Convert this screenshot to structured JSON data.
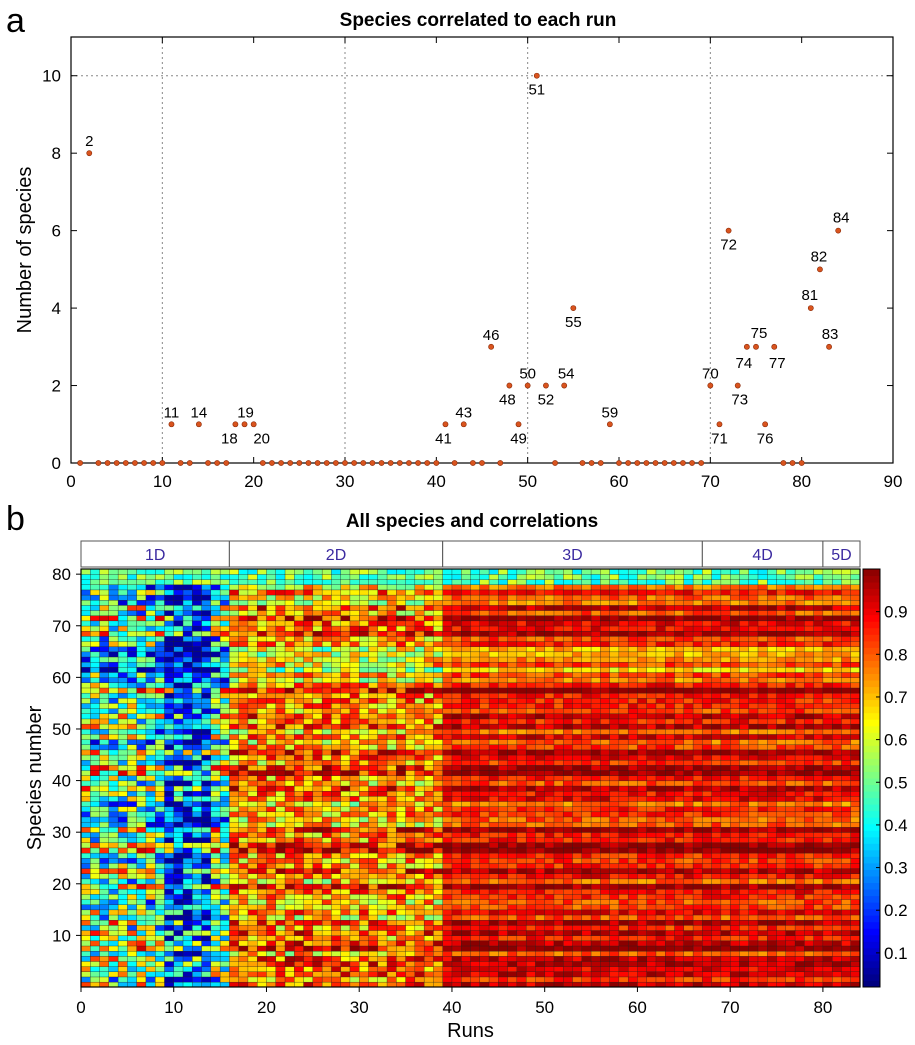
{
  "chart_data": [
    {
      "type": "scatter",
      "panel": "a",
      "title": "Species correlated to each run",
      "xlabel": "",
      "ylabel": "Number of species",
      "xlim": [
        0,
        90
      ],
      "ylim": [
        0,
        11
      ],
      "xticks": [
        0,
        10,
        20,
        30,
        40,
        50,
        60,
        70,
        80,
        90
      ],
      "yticks": [
        0,
        2,
        4,
        6,
        8,
        10
      ],
      "grid": "dotted at x=10,30,50,70 and y=10",
      "marker_color": "#d9541e",
      "points": [
        {
          "x": 1,
          "y": 0
        },
        {
          "x": 2,
          "y": 8,
          "label": "2"
        },
        {
          "x": 3,
          "y": 0
        },
        {
          "x": 4,
          "y": 0
        },
        {
          "x": 5,
          "y": 0
        },
        {
          "x": 6,
          "y": 0
        },
        {
          "x": 7,
          "y": 0
        },
        {
          "x": 8,
          "y": 0
        },
        {
          "x": 9,
          "y": 0
        },
        {
          "x": 10,
          "y": 0
        },
        {
          "x": 11,
          "y": 1,
          "label": "11"
        },
        {
          "x": 12,
          "y": 0
        },
        {
          "x": 13,
          "y": 0
        },
        {
          "x": 14,
          "y": 1,
          "label": "14"
        },
        {
          "x": 15,
          "y": 0
        },
        {
          "x": 16,
          "y": 0
        },
        {
          "x": 17,
          "y": 0
        },
        {
          "x": 18,
          "y": 1,
          "label": "18"
        },
        {
          "x": 19,
          "y": 1,
          "label": "19"
        },
        {
          "x": 20,
          "y": 1,
          "label": "20"
        },
        {
          "x": 21,
          "y": 0
        },
        {
          "x": 22,
          "y": 0
        },
        {
          "x": 23,
          "y": 0
        },
        {
          "x": 24,
          "y": 0
        },
        {
          "x": 25,
          "y": 0
        },
        {
          "x": 26,
          "y": 0
        },
        {
          "x": 27,
          "y": 0
        },
        {
          "x": 28,
          "y": 0
        },
        {
          "x": 29,
          "y": 0
        },
        {
          "x": 30,
          "y": 0
        },
        {
          "x": 31,
          "y": 0
        },
        {
          "x": 32,
          "y": 0
        },
        {
          "x": 33,
          "y": 0
        },
        {
          "x": 34,
          "y": 0
        },
        {
          "x": 35,
          "y": 0
        },
        {
          "x": 36,
          "y": 0
        },
        {
          "x": 37,
          "y": 0
        },
        {
          "x": 38,
          "y": 0
        },
        {
          "x": 39,
          "y": 0
        },
        {
          "x": 40,
          "y": 0
        },
        {
          "x": 41,
          "y": 1,
          "label": "41"
        },
        {
          "x": 42,
          "y": 0
        },
        {
          "x": 43,
          "y": 1,
          "label": "43"
        },
        {
          "x": 44,
          "y": 0
        },
        {
          "x": 45,
          "y": 0
        },
        {
          "x": 46,
          "y": 3,
          "label": "46"
        },
        {
          "x": 47,
          "y": 0
        },
        {
          "x": 48,
          "y": 2,
          "label": "48"
        },
        {
          "x": 49,
          "y": 1,
          "label": "49"
        },
        {
          "x": 50,
          "y": 2,
          "label": "50"
        },
        {
          "x": 51,
          "y": 10,
          "label": "51"
        },
        {
          "x": 52,
          "y": 2,
          "label": "52"
        },
        {
          "x": 53,
          "y": 0
        },
        {
          "x": 54,
          "y": 2,
          "label": "54"
        },
        {
          "x": 55,
          "y": 4,
          "label": "55"
        },
        {
          "x": 56,
          "y": 0
        },
        {
          "x": 57,
          "y": 0
        },
        {
          "x": 58,
          "y": 0
        },
        {
          "x": 59,
          "y": 1,
          "label": "59"
        },
        {
          "x": 60,
          "y": 0
        },
        {
          "x": 61,
          "y": 0
        },
        {
          "x": 62,
          "y": 0
        },
        {
          "x": 63,
          "y": 0
        },
        {
          "x": 64,
          "y": 0
        },
        {
          "x": 65,
          "y": 0
        },
        {
          "x": 66,
          "y": 0
        },
        {
          "x": 67,
          "y": 0
        },
        {
          "x": 68,
          "y": 0
        },
        {
          "x": 69,
          "y": 0
        },
        {
          "x": 70,
          "y": 2,
          "label": "70"
        },
        {
          "x": 71,
          "y": 1,
          "label": "71"
        },
        {
          "x": 72,
          "y": 6,
          "label": "72"
        },
        {
          "x": 73,
          "y": 2,
          "label": "73"
        },
        {
          "x": 74,
          "y": 3,
          "label": "74"
        },
        {
          "x": 75,
          "y": 3,
          "label": "75"
        },
        {
          "x": 76,
          "y": 1,
          "label": "76"
        },
        {
          "x": 77,
          "y": 3,
          "label": "77"
        },
        {
          "x": 78,
          "y": 0
        },
        {
          "x": 79,
          "y": 0
        },
        {
          "x": 80,
          "y": 0
        },
        {
          "x": 81,
          "y": 4,
          "label": "81"
        },
        {
          "x": 82,
          "y": 5,
          "label": "82"
        },
        {
          "x": 83,
          "y": 3,
          "label": "83"
        },
        {
          "x": 84,
          "y": 6,
          "label": "84"
        }
      ]
    },
    {
      "type": "heatmap",
      "panel": "b",
      "title": "All species and correlations",
      "xlabel": "Runs",
      "ylabel": "Species number",
      "x_range": [
        1,
        84
      ],
      "y_range": [
        1,
        81
      ],
      "xticks": [
        0,
        10,
        20,
        30,
        40,
        50,
        60,
        70,
        80
      ],
      "yticks": [
        10,
        20,
        30,
        40,
        50,
        60,
        70,
        80
      ],
      "colorbar": {
        "range": [
          0.02,
          1.0
        ],
        "ticks": [
          0.1,
          0.2,
          0.3,
          0.4,
          0.5,
          0.6,
          0.7,
          0.8,
          0.9
        ]
      },
      "colormap": "jet",
      "run_groups": [
        {
          "label": "1D",
          "start_run": 1,
          "end_run": 16
        },
        {
          "label": "2D",
          "start_run": 17,
          "end_run": 39
        },
        {
          "label": "3D",
          "start_run": 40,
          "end_run": 67
        },
        {
          "label": "4D",
          "start_run": 68,
          "end_run": 80
        },
        {
          "label": "5D",
          "start_run": 81,
          "end_run": 84
        }
      ],
      "approx_mean_by_group": {
        "1D": 0.5,
        "2D": 0.75,
        "3D": 0.88,
        "4D": 0.88,
        "5D": 0.87
      }
    }
  ]
}
